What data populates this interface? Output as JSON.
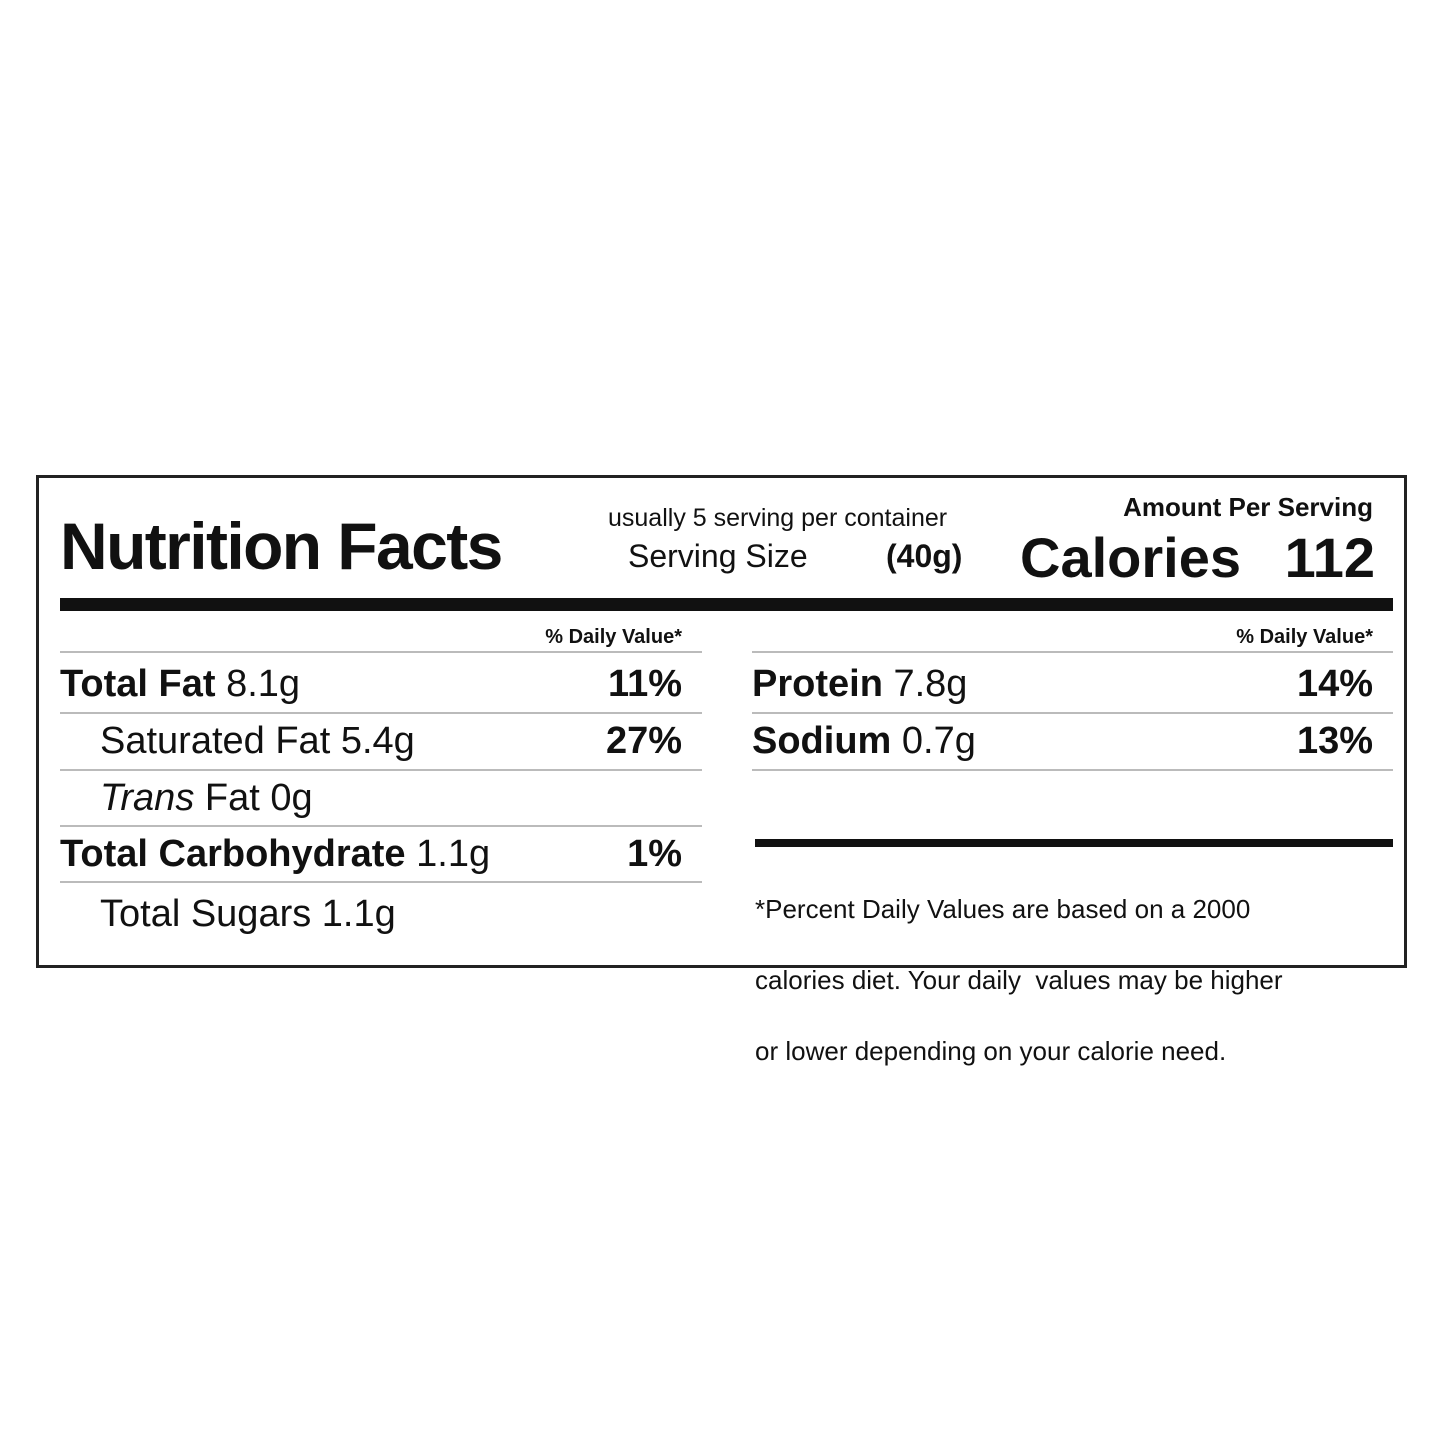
{
  "header": {
    "title": "Nutrition Facts",
    "servings": "usually 5 serving per container",
    "serving_size_label": "Serving Size",
    "serving_size_value": "(40g)",
    "amount_per_serving": "Amount Per Serving",
    "calories_label": "Calories",
    "calories_value": "112"
  },
  "left": {
    "dv_header": "% Daily Value*",
    "rows": [
      {
        "name": "Total Fat",
        "amount": "8.1g",
        "dv": "11%"
      },
      {
        "name": "Saturated Fat",
        "amount": "5.4g",
        "dv": "27%"
      },
      {
        "name_italic": "Trans",
        "name": "Fat",
        "amount": "0g"
      },
      {
        "name": "Total Carbohydrate",
        "amount": "1.1g",
        "dv": "1%"
      },
      {
        "name": "Total Sugars",
        "amount": "1.1g"
      }
    ]
  },
  "right": {
    "dv_header": "% Daily Value*",
    "rows": [
      {
        "name": "Protein",
        "amount": "7.8g",
        "dv": "14%"
      },
      {
        "name": "Sodium",
        "amount": "0.7g",
        "dv": "13%"
      }
    ],
    "footnote": [
      "*Percent Daily Values are based on a 2000",
      "calories diet. Your daily  values may be higher",
      "or lower depending on your calorie need."
    ]
  }
}
